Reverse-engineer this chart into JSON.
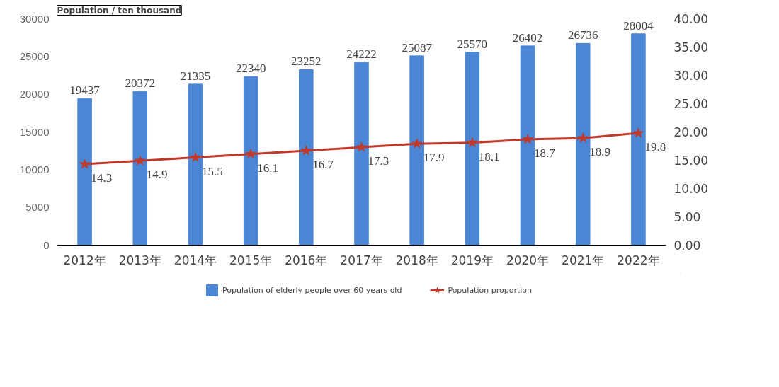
{
  "chart_data": {
    "type": "bar",
    "ylabel": "Population / ten thousand",
    "categories": [
      "2012年",
      "2013年",
      "2014年",
      "2015年",
      "2016年",
      "2017年",
      "2018年",
      "2019年",
      "2020年",
      "2021年",
      "2022年"
    ],
    "series": [
      {
        "name": "Population of elderly people over 60 years old",
        "color": "#4a86d4",
        "values": [
          19437,
          20372,
          21335,
          22340,
          23252,
          24222,
          25087,
          25570,
          26402,
          26736,
          28004
        ]
      },
      {
        "name": "Population proportion",
        "type": "line",
        "axis": "y2",
        "color": "#c0392b",
        "marker": "star",
        "values": [
          14.3,
          14.9,
          15.5,
          16.1,
          16.7,
          17.3,
          17.9,
          18.1,
          18.7,
          18.9,
          19.8
        ]
      }
    ],
    "ylim": [
      0,
      30000
    ],
    "yticks": [
      0,
      5000,
      10000,
      15000,
      20000,
      25000,
      30000
    ],
    "y2lim": [
      0,
      40
    ],
    "y2ticks": [
      {
        "value": 0,
        "label": "0.00"
      },
      {
        "value": 5,
        "label": "5.00"
      },
      {
        "value": 10,
        "label": "10.00"
      },
      {
        "value": 15,
        "label": "15.00"
      },
      {
        "value": 20,
        "label": "20.00"
      },
      {
        "value": 25,
        "label": "25.00"
      },
      {
        "value": 30,
        "label": "30.00"
      },
      {
        "value": 35,
        "label": "35.00"
      },
      {
        "value": 40,
        "label": "40.00"
      }
    ],
    "data_labels": true,
    "grid": false,
    "legend": "bottom"
  }
}
